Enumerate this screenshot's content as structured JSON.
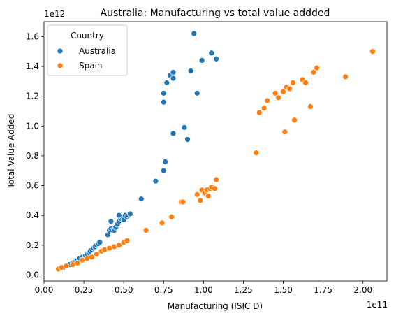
{
  "chart_data": {
    "type": "scatter",
    "title": "Australia: Manufacturing vs total value addded",
    "xlabel": "Manufacturing (ISIC D)",
    "ylabel": "Total Value Added",
    "x_offset_label": "1e11",
    "y_offset_label": "1e12",
    "x_scale": 100000000000,
    "y_scale": 1000000000000,
    "xlim": [
      0.0,
      2.15
    ],
    "ylim": [
      -0.04,
      1.7
    ],
    "xticks": [
      0.0,
      0.25,
      0.5,
      0.75,
      1.0,
      1.25,
      1.5,
      1.75,
      2.0
    ],
    "xtick_labels": [
      "0.00",
      "0.25",
      "0.50",
      "0.75",
      "1.00",
      "1.25",
      "1.50",
      "1.75",
      "2.00"
    ],
    "yticks": [
      0.0,
      0.2,
      0.4,
      0.6,
      0.8,
      1.0,
      1.2,
      1.4,
      1.6
    ],
    "ytick_labels": [
      "0.0",
      "0.2",
      "0.4",
      "0.6",
      "0.8",
      "1.0",
      "1.2",
      "1.4",
      "1.6"
    ],
    "grid": false,
    "legend": {
      "title": "Country",
      "position": "top-left"
    },
    "series": [
      {
        "name": "Australia",
        "color": "#1f77b4",
        "points": [
          [
            0.09,
            0.04
          ],
          [
            0.1,
            0.045
          ],
          [
            0.12,
            0.05
          ],
          [
            0.14,
            0.06
          ],
          [
            0.16,
            0.07
          ],
          [
            0.18,
            0.08
          ],
          [
            0.2,
            0.09
          ],
          [
            0.21,
            0.1
          ],
          [
            0.22,
            0.11
          ],
          [
            0.24,
            0.12
          ],
          [
            0.26,
            0.13
          ],
          [
            0.27,
            0.14
          ],
          [
            0.28,
            0.15
          ],
          [
            0.29,
            0.16
          ],
          [
            0.3,
            0.17
          ],
          [
            0.31,
            0.18
          ],
          [
            0.32,
            0.19
          ],
          [
            0.33,
            0.2
          ],
          [
            0.34,
            0.21
          ],
          [
            0.35,
            0.22
          ],
          [
            0.4,
            0.27
          ],
          [
            0.41,
            0.3
          ],
          [
            0.42,
            0.31
          ],
          [
            0.43,
            0.3
          ],
          [
            0.44,
            0.3
          ],
          [
            0.45,
            0.32
          ],
          [
            0.46,
            0.34
          ],
          [
            0.47,
            0.36
          ],
          [
            0.48,
            0.38
          ],
          [
            0.49,
            0.39
          ],
          [
            0.5,
            0.37
          ],
          [
            0.51,
            0.4
          ],
          [
            0.52,
            0.39
          ],
          [
            0.53,
            0.4
          ],
          [
            0.54,
            0.41
          ],
          [
            0.42,
            0.36
          ],
          [
            0.47,
            0.4
          ],
          [
            0.61,
            0.51
          ],
          [
            0.7,
            0.63
          ],
          [
            0.75,
            0.7
          ],
          [
            0.76,
            0.76
          ],
          [
            0.81,
            0.95
          ],
          [
            0.75,
            1.16
          ],
          [
            0.75,
            1.22
          ],
          [
            0.77,
            1.29
          ],
          [
            0.79,
            1.34
          ],
          [
            0.81,
            1.32
          ],
          [
            0.81,
            1.36
          ],
          [
            0.88,
            0.99
          ],
          [
            0.9,
            0.91
          ],
          [
            0.92,
            1.37
          ],
          [
            0.94,
            1.62
          ],
          [
            0.96,
            1.22
          ],
          [
            0.99,
            1.44
          ],
          [
            1.05,
            1.49
          ],
          [
            1.08,
            1.45
          ]
        ]
      },
      {
        "name": "Spain",
        "color": "#ff7f0e",
        "points": [
          [
            0.09,
            0.04
          ],
          [
            0.11,
            0.05
          ],
          [
            0.14,
            0.06
          ],
          [
            0.18,
            0.07
          ],
          [
            0.21,
            0.08
          ],
          [
            0.24,
            0.1
          ],
          [
            0.27,
            0.11
          ],
          [
            0.3,
            0.12
          ],
          [
            0.33,
            0.14
          ],
          [
            0.36,
            0.16
          ],
          [
            0.38,
            0.17
          ],
          [
            0.41,
            0.18
          ],
          [
            0.44,
            0.19
          ],
          [
            0.47,
            0.2
          ],
          [
            0.5,
            0.22
          ],
          [
            0.52,
            0.23
          ],
          [
            0.64,
            0.3
          ],
          [
            0.74,
            0.35
          ],
          [
            0.8,
            0.39
          ],
          [
            0.86,
            0.49
          ],
          [
            0.87,
            0.49
          ],
          [
            0.96,
            0.54
          ],
          [
            0.98,
            0.5
          ],
          [
            0.99,
            0.57
          ],
          [
            1.01,
            0.55
          ],
          [
            1.02,
            0.57
          ],
          [
            1.03,
            0.53
          ],
          [
            1.04,
            0.58
          ],
          [
            1.05,
            0.59
          ],
          [
            1.07,
            0.58
          ],
          [
            1.08,
            0.64
          ],
          [
            1.33,
            0.82
          ],
          [
            1.35,
            1.09
          ],
          [
            1.38,
            1.12
          ],
          [
            1.4,
            1.17
          ],
          [
            1.45,
            1.22
          ],
          [
            1.47,
            1.19
          ],
          [
            1.5,
            1.23
          ],
          [
            1.51,
            0.96
          ],
          [
            1.52,
            1.26
          ],
          [
            1.54,
            1.25
          ],
          [
            1.56,
            1.29
          ],
          [
            1.57,
            1.04
          ],
          [
            1.62,
            1.31
          ],
          [
            1.64,
            1.29
          ],
          [
            1.67,
            1.13
          ],
          [
            1.69,
            1.36
          ],
          [
            1.71,
            1.39
          ],
          [
            1.89,
            1.33
          ],
          [
            2.06,
            1.5
          ]
        ]
      }
    ]
  }
}
